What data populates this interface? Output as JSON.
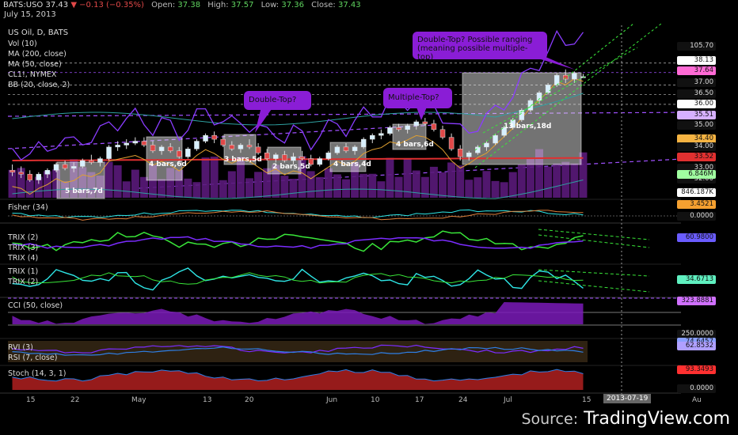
{
  "header": {
    "symbol": "BATS:USO",
    "last": "37.43",
    "change": "▼ −0.13 (−0.35%)",
    "open_label": "Open:",
    "open": "37.38",
    "high_label": "High:",
    "high": "37.57",
    "low_label": "Low:",
    "low": "37.36",
    "close_label": "Close:",
    "close": "37.43",
    "date": "July 15, 2013"
  },
  "legend": {
    "title": "US Oil, D, BATS",
    "lines": [
      "Vol (10)",
      "MA (200, close)",
      "MA (50, close)",
      "CL1!, NYMEX",
      "BB (20, close, 2)"
    ]
  },
  "indicators": {
    "fisher": "Fisher (34)",
    "trix_a": [
      "TRIX (2)",
      "TRIX (3)",
      "TRIX (4)"
    ],
    "trix_b": [
      "TRIX (1)",
      "TRIX (2)"
    ],
    "cci": "CCI (50, close)",
    "rvi": "RVI (3)",
    "rsi": "RSI (7, close)",
    "stoch": "Stoch (14, 3, 1)"
  },
  "callouts": {
    "c1": "Double-Top?",
    "c2": "Multiple-Top?",
    "c3": "Double-Top? Possible ranging (meaning possible multiple-top)"
  },
  "intervals": [
    "5 bars,7d",
    "4 bars,6d",
    "3 bars,5d",
    "2 bars,5d",
    "4 bars,4d",
    "4 bars,6d",
    "13 bars,18d"
  ],
  "price_scale": {
    "labels": [
      "105.70",
      "38.13",
      "37.64",
      "37.00",
      "36.50",
      "36.00",
      "35.51",
      "35.00",
      "34.40",
      "34.00",
      "33.52",
      "33.00",
      "32.00",
      "846.187K",
      "6.846M",
      "3.4521",
      "0.0000",
      "60.9800",
      "34.6713",
      "323.8881",
      "250.0000",
      "74.6457",
      "62.8532",
      "93.3493",
      "0.0000"
    ]
  },
  "time_axis": [
    "15",
    "22",
    "May",
    "13",
    "20",
    "Jun",
    "10",
    "17",
    "24",
    "Jul",
    "15",
    "Au"
  ],
  "date_badge": "2013-07-19",
  "source": {
    "prefix": "Source:",
    "name": "TradingView.com"
  },
  "colors": {
    "up": "#5fd35f",
    "down": "#e04848",
    "callout": "#8a1dd6",
    "purple": "#7b2cff",
    "cyan": "#2ee6e6",
    "green": "#39e639"
  },
  "chart_data": {
    "type": "line",
    "title": "US Oil, D, BATS",
    "ohlc": [
      [
        32.6,
        32.9,
        32.3,
        32.5
      ],
      [
        32.5,
        32.8,
        32.2,
        32.4
      ],
      [
        32.4,
        32.6,
        32.0,
        32.1
      ],
      [
        32.1,
        32.5,
        31.9,
        32.4
      ],
      [
        32.4,
        32.7,
        32.2,
        32.6
      ],
      [
        32.6,
        33.0,
        32.5,
        32.9
      ],
      [
        32.9,
        33.1,
        32.6,
        32.7
      ],
      [
        32.7,
        33.0,
        32.5,
        32.8
      ],
      [
        32.8,
        33.2,
        32.7,
        33.1
      ],
      [
        33.1,
        33.4,
        32.9,
        33.0
      ],
      [
        33.0,
        33.3,
        32.8,
        33.2
      ],
      [
        33.2,
        33.9,
        33.1,
        33.8
      ],
      [
        33.8,
        34.1,
        33.6,
        33.9
      ],
      [
        33.9,
        34.2,
        33.7,
        34.0
      ],
      [
        34.0,
        34.3,
        33.9,
        34.1
      ],
      [
        34.1,
        34.3,
        33.8,
        33.9
      ],
      [
        33.9,
        34.1,
        33.5,
        33.6
      ],
      [
        33.6,
        33.9,
        33.4,
        33.8
      ],
      [
        33.8,
        34.0,
        33.5,
        33.6
      ],
      [
        33.6,
        33.8,
        33.2,
        33.3
      ],
      [
        33.3,
        33.8,
        33.2,
        33.7
      ],
      [
        33.7,
        34.2,
        33.6,
        34.1
      ],
      [
        34.1,
        34.5,
        34.0,
        34.4
      ],
      [
        34.4,
        34.6,
        34.0,
        34.2
      ],
      [
        34.2,
        34.4,
        33.8,
        33.9
      ],
      [
        33.9,
        34.1,
        33.6,
        33.7
      ],
      [
        33.7,
        34.0,
        33.5,
        33.9
      ],
      [
        33.9,
        34.2,
        33.7,
        33.8
      ],
      [
        33.8,
        34.0,
        33.4,
        33.5
      ],
      [
        33.5,
        33.7,
        33.1,
        33.2
      ],
      [
        33.2,
        33.5,
        33.0,
        33.4
      ],
      [
        33.4,
        33.6,
        33.0,
        33.1
      ],
      [
        33.1,
        33.5,
        32.9,
        33.3
      ],
      [
        33.3,
        33.6,
        33.1,
        33.2
      ],
      [
        33.2,
        33.4,
        32.8,
        32.9
      ],
      [
        32.9,
        33.3,
        32.8,
        33.2
      ],
      [
        33.2,
        33.6,
        33.1,
        33.5
      ],
      [
        33.5,
        33.9,
        33.4,
        33.8
      ],
      [
        33.8,
        34.0,
        33.5,
        33.6
      ],
      [
        33.6,
        33.9,
        33.4,
        33.8
      ],
      [
        33.8,
        34.3,
        33.7,
        34.2
      ],
      [
        34.2,
        34.5,
        34.0,
        34.4
      ],
      [
        34.4,
        34.7,
        34.2,
        34.5
      ],
      [
        34.5,
        34.9,
        34.4,
        34.8
      ],
      [
        34.8,
        35.0,
        34.6,
        34.7
      ],
      [
        34.7,
        35.0,
        34.5,
        34.9
      ],
      [
        34.9,
        35.2,
        34.7,
        35.1
      ],
      [
        35.1,
        35.3,
        34.9,
        35.0
      ],
      [
        35.0,
        35.2,
        34.6,
        34.7
      ],
      [
        34.7,
        34.9,
        34.2,
        34.3
      ],
      [
        34.3,
        34.5,
        33.6,
        33.7
      ],
      [
        33.7,
        33.9,
        33.1,
        33.3
      ],
      [
        33.3,
        33.6,
        33.1,
        33.5
      ],
      [
        33.5,
        33.9,
        33.4,
        33.8
      ],
      [
        33.8,
        34.1,
        33.6,
        34.0
      ],
      [
        34.0,
        34.5,
        33.9,
        34.4
      ],
      [
        34.4,
        34.9,
        34.3,
        34.8
      ],
      [
        34.8,
        35.3,
        34.7,
        35.2
      ],
      [
        35.2,
        35.8,
        35.1,
        35.7
      ],
      [
        35.7,
        36.3,
        35.6,
        36.2
      ],
      [
        36.2,
        36.7,
        36.0,
        36.6
      ],
      [
        36.6,
        37.1,
        36.5,
        37.0
      ],
      [
        37.0,
        37.6,
        36.9,
        37.5
      ],
      [
        37.5,
        37.8,
        37.1,
        37.3
      ],
      [
        37.3,
        37.7,
        37.1,
        37.6
      ],
      [
        37.38,
        37.57,
        37.36,
        37.43
      ]
    ],
    "xlabel": "",
    "ylabel": "",
    "ylim": [
      32.0,
      38.2
    ]
  }
}
